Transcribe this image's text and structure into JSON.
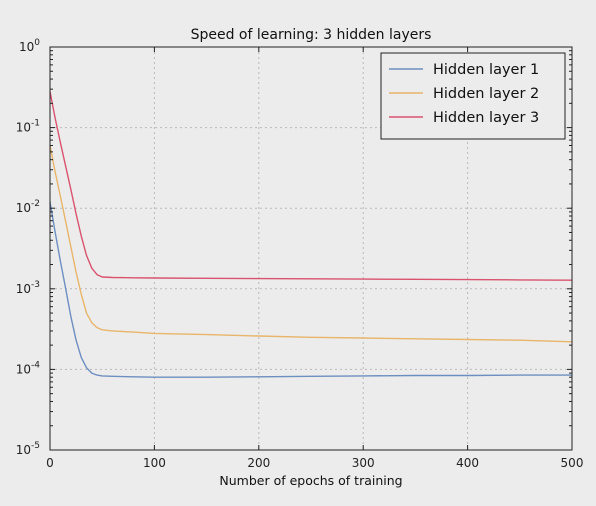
{
  "chart_data": {
    "type": "line",
    "title": "Speed of learning: 3 hidden layers",
    "xlabel": "Number of epochs of training",
    "ylabel": "",
    "xlim": [
      0,
      500
    ],
    "ylim": [
      1e-05,
      1
    ],
    "y_scale": "log",
    "grid": true,
    "legend_position": "top-right",
    "x_ticks": [
      {
        "value": 0,
        "label": "0"
      },
      {
        "value": 100,
        "label": "100"
      },
      {
        "value": 200,
        "label": "200"
      },
      {
        "value": 300,
        "label": "300"
      },
      {
        "value": 400,
        "label": "400"
      },
      {
        "value": 500,
        "label": "500"
      }
    ],
    "y_ticks": [
      {
        "value": 1,
        "base": "10",
        "exp": "0"
      },
      {
        "value": 0.1,
        "base": "10",
        "exp": "-1"
      },
      {
        "value": 0.01,
        "base": "10",
        "exp": "-2"
      },
      {
        "value": 0.001,
        "base": "10",
        "exp": "-3"
      },
      {
        "value": 0.0001,
        "base": "10",
        "exp": "-4"
      },
      {
        "value": 1e-05,
        "base": "10",
        "exp": "-5"
      }
    ],
    "x": [
      0,
      5,
      10,
      15,
      20,
      25,
      30,
      35,
      40,
      45,
      50,
      60,
      80,
      100,
      150,
      200,
      250,
      300,
      350,
      400,
      450,
      500
    ],
    "series": [
      {
        "name": "Hidden layer 1",
        "color": "#6d8ec0",
        "values": [
          0.012,
          0.005,
          0.0022,
          0.001,
          0.00045,
          0.00023,
          0.00014,
          0.000105,
          9e-05,
          8.5e-05,
          8.3e-05,
          8.2e-05,
          8.1e-05,
          8e-05,
          8e-05,
          8.1e-05,
          8.2e-05,
          8.3e-05,
          8.4e-05,
          8.4e-05,
          8.5e-05,
          8.5e-05
        ]
      },
      {
        "name": "Hidden layer 2",
        "color": "#e8b56a",
        "values": [
          0.06,
          0.028,
          0.014,
          0.0068,
          0.0033,
          0.0016,
          0.00085,
          0.0005,
          0.00038,
          0.00033,
          0.00031,
          0.0003,
          0.00029,
          0.00028,
          0.00027,
          0.00026,
          0.00025,
          0.000245,
          0.00024,
          0.000235,
          0.00023,
          0.00022
        ]
      },
      {
        "name": "Hidden layer 3",
        "color": "#d9526e",
        "values": [
          0.28,
          0.13,
          0.065,
          0.033,
          0.017,
          0.0085,
          0.0045,
          0.0026,
          0.0018,
          0.0015,
          0.0014,
          0.00138,
          0.00137,
          0.00136,
          0.00135,
          0.00134,
          0.00133,
          0.00132,
          0.00131,
          0.0013,
          0.00129,
          0.00128
        ]
      }
    ]
  }
}
